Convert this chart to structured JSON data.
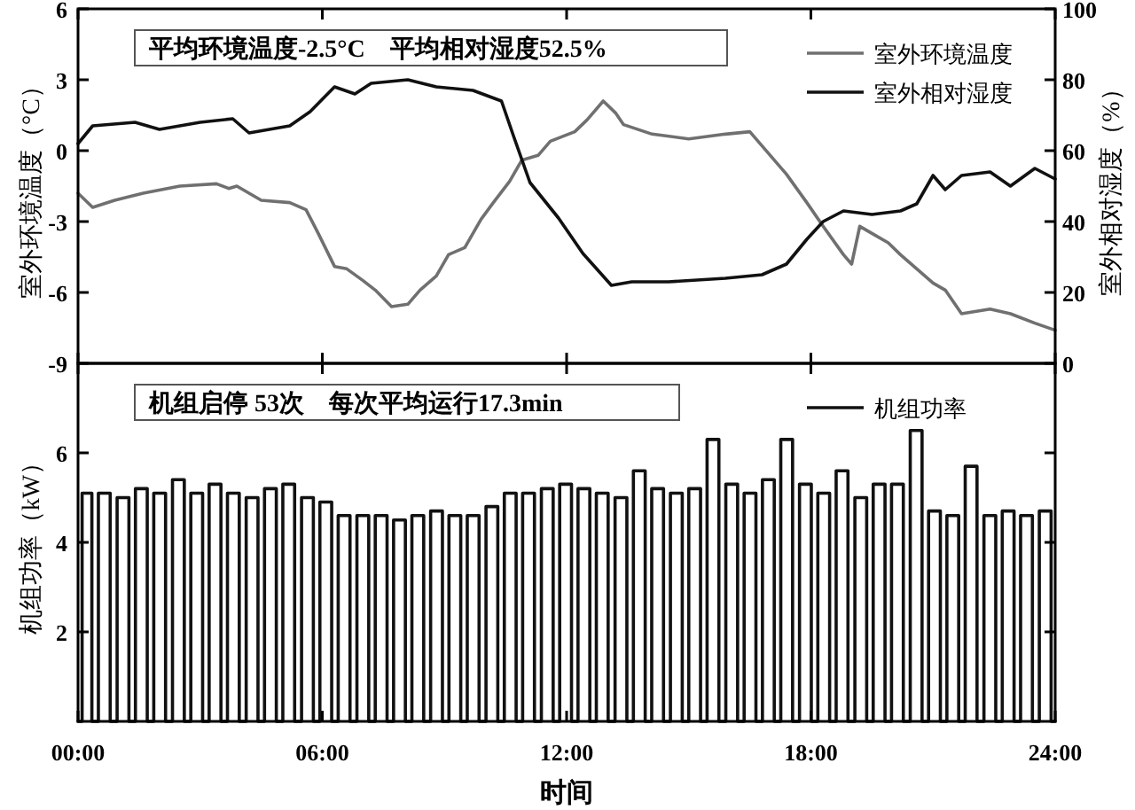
{
  "chart_data": [
    {
      "type": "line",
      "ylabel": "室外环境温度（°C）",
      "y2label": "室外相对湿度（%）",
      "annotations": [
        "平均环境温度-2.5°C　平均相对湿度52.5%"
      ],
      "xlim": [
        0,
        24
      ],
      "xticks": [
        {
          "value": 0,
          "label": null
        },
        {
          "value": 6,
          "label": null
        },
        {
          "value": 12,
          "label": null
        },
        {
          "value": 18,
          "label": null
        },
        {
          "value": 24,
          "label": null
        }
      ],
      "ylim": [
        -9,
        6
      ],
      "yticks": [
        -9,
        -6,
        -3,
        0,
        3,
        6
      ],
      "y2lim": [
        0,
        100
      ],
      "y2ticks": [
        0,
        20,
        40,
        60,
        80,
        100
      ],
      "tick_labels": "y",
      "legend": "top right",
      "grid": false,
      "marker": "none",
      "line_style": "solid",
      "series": [
        {
          "name": "室外环境温度",
          "color": "#707070",
          "x": [
            0,
            0.36,
            0.9,
            1.6,
            2.5,
            3.4,
            3.7,
            3.9,
            4.5,
            5.2,
            5.6,
            5.9,
            6.3,
            6.6,
            7.0,
            7.3,
            7.7,
            8.1,
            8.4,
            8.8,
            9.1,
            9.5,
            9.9,
            10.2,
            10.6,
            10.9,
            11.3,
            11.6,
            12.2,
            12.5,
            12.9,
            13.2,
            13.4,
            14.1,
            15.0,
            15.9,
            16.5,
            16.8,
            17.4,
            17.9,
            18.3,
            18.8,
            19.0,
            19.2,
            19.5,
            19.9,
            20.2,
            20.6,
            21.0,
            21.3,
            21.7,
            22.4,
            22.9,
            23.5,
            24.0
          ],
          "values": [
            -1.8,
            -2.4,
            -2.1,
            -1.8,
            -1.5,
            -1.4,
            -1.6,
            -1.5,
            -2.1,
            -2.2,
            -2.5,
            -3.5,
            -4.9,
            -5.0,
            -5.5,
            -5.9,
            -6.6,
            -6.5,
            -5.9,
            -5.3,
            -4.4,
            -4.1,
            -2.9,
            -2.2,
            -1.3,
            -0.4,
            -0.2,
            0.4,
            0.8,
            1.3,
            2.1,
            1.6,
            1.1,
            0.7,
            0.5,
            0.7,
            0.8,
            0.2,
            -1.0,
            -2.2,
            -3.2,
            -4.4,
            -4.8,
            -3.2,
            -3.5,
            -3.9,
            -4.4,
            -5.0,
            -5.6,
            -5.9,
            -6.9,
            -6.7,
            -6.9,
            -7.3,
            -7.6
          ]
        },
        {
          "name": "室外相对湿度",
          "color": "#111111",
          "axis": "y2",
          "x": [
            0,
            0.36,
            1.4,
            2.0,
            3.0,
            3.8,
            4.2,
            5.2,
            5.7,
            6.3,
            6.8,
            7.2,
            8.1,
            8.8,
            9.7,
            10.4,
            10.7,
            11.1,
            11.8,
            12.4,
            13.1,
            13.6,
            14.5,
            15.9,
            16.8,
            17.4,
            17.9,
            18.3,
            18.8,
            19.5,
            20.2,
            20.6,
            21.0,
            21.3,
            21.7,
            22.4,
            22.9,
            23.5,
            24.0
          ],
          "values": [
            62,
            67,
            68,
            66,
            68,
            69,
            65,
            67,
            71,
            78,
            76,
            79,
            80,
            78,
            77,
            74,
            64,
            51,
            41,
            31,
            22,
            23,
            23,
            24,
            25,
            28,
            35,
            40,
            43,
            42,
            43,
            45,
            53,
            49,
            53,
            54,
            50,
            55,
            52
          ]
        }
      ]
    },
    {
      "type": "step",
      "xlabel": "时间",
      "ylabel": "机组功率（kW）",
      "annotations": [
        "机组启停 53次　每次平均运行17.3min"
      ],
      "xlim": [
        0,
        24
      ],
      "xticks": [
        {
          "value": 0,
          "label": "00:00"
        },
        {
          "value": 6,
          "label": "06:00"
        },
        {
          "value": 12,
          "label": "12:00"
        },
        {
          "value": 18,
          "label": "18:00"
        },
        {
          "value": 24,
          "label": "24:00"
        }
      ],
      "ylim": [
        0,
        8
      ],
      "yticks": [
        2,
        4,
        6
      ],
      "legend": "top right",
      "grid": false,
      "marker": "none",
      "line_style": "solid",
      "series": [
        {
          "name": "机组功率",
          "color": "#111111",
          "x": [
            0,
            0.1,
            0.34,
            0.5,
            0.79,
            0.96,
            1.25,
            1.41,
            1.7,
            1.86,
            2.15,
            2.32,
            2.61,
            2.77,
            3.06,
            3.22,
            3.51,
            3.67,
            3.96,
            4.13,
            4.42,
            4.58,
            4.87,
            5.03,
            5.32,
            5.49,
            5.78,
            5.94,
            6.23,
            6.39,
            6.68,
            6.85,
            7.14,
            7.3,
            7.59,
            7.75,
            8.04,
            8.2,
            8.49,
            8.66,
            8.95,
            9.11,
            9.4,
            9.56,
            9.85,
            10.02,
            10.31,
            10.47,
            10.76,
            10.92,
            11.21,
            11.38,
            11.67,
            11.83,
            12.12,
            12.28,
            12.57,
            12.73,
            13.02,
            13.19,
            13.48,
            13.64,
            13.93,
            14.09,
            14.38,
            14.55,
            14.84,
            15.0,
            15.29,
            15.45,
            15.74,
            15.91,
            16.2,
            16.36,
            16.65,
            16.81,
            17.1,
            17.26,
            17.55,
            17.72,
            18.01,
            18.17,
            18.46,
            18.62,
            18.91,
            19.08,
            19.37,
            19.53,
            19.82,
            19.98,
            20.27,
            20.44,
            20.73,
            20.89,
            21.18,
            21.34,
            21.63,
            21.79,
            22.08,
            22.25,
            22.54,
            22.7,
            22.99,
            23.15,
            23.44,
            23.61,
            23.9,
            24
          ],
          "values": [
            0,
            5.1,
            0,
            5.1,
            0,
            5.0,
            0,
            5.2,
            0,
            5.1,
            0,
            5.4,
            0,
            5.1,
            0,
            5.3,
            0,
            5.1,
            0,
            5.0,
            0,
            5.2,
            0,
            5.3,
            0,
            5.0,
            0,
            4.9,
            0,
            4.6,
            0,
            4.6,
            0,
            4.6,
            0,
            4.5,
            0,
            4.6,
            0,
            4.7,
            0,
            4.6,
            0,
            4.6,
            0,
            4.8,
            0,
            5.1,
            0,
            5.1,
            0,
            5.2,
            0,
            5.3,
            0,
            5.2,
            0,
            5.1,
            0,
            5.0,
            0,
            5.6,
            0,
            5.2,
            0,
            5.1,
            0,
            5.2,
            0,
            6.3,
            0,
            5.3,
            0,
            5.1,
            0,
            5.4,
            0,
            6.3,
            0,
            5.3,
            0,
            5.1,
            0,
            5.6,
            0,
            5.0,
            0,
            5.3,
            0,
            5.3,
            0,
            6.5,
            0,
            4.7,
            0,
            4.6,
            0,
            5.7,
            0,
            4.6,
            0,
            4.7,
            0,
            4.6,
            0,
            4.7,
            0,
            0
          ]
        }
      ]
    }
  ]
}
